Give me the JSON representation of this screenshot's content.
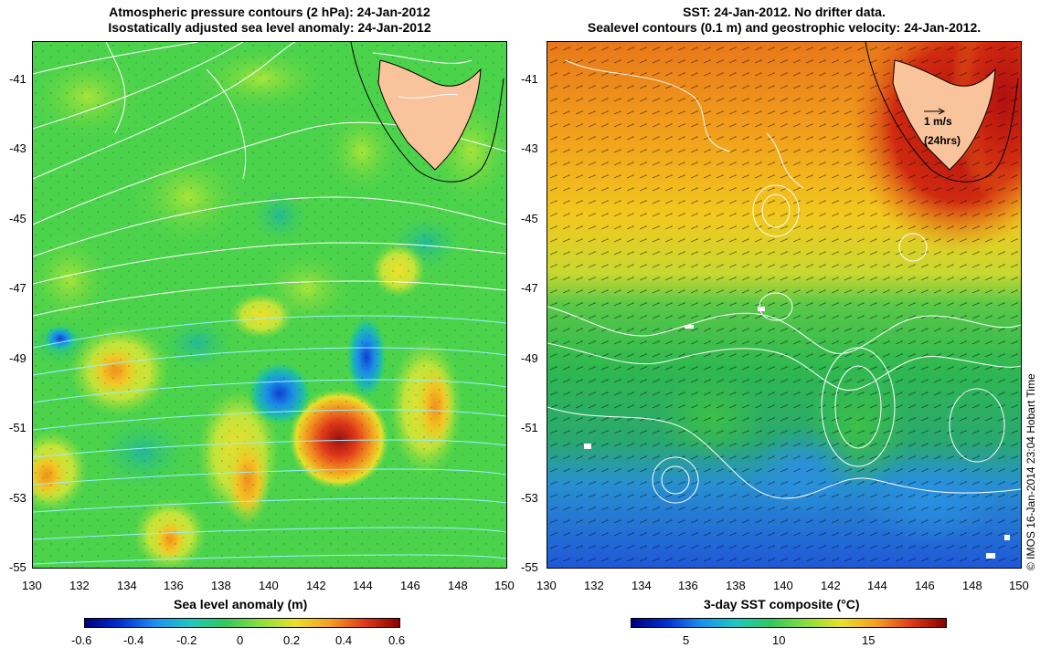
{
  "left_panel": {
    "title_line1": "Atmospheric pressure contours (2 hPa): 24-Jan-2012",
    "title_line2": "Isostatically adjusted sea level anomaly: 24-Jan-2012",
    "xlabel": "Sea level anomaly (m)",
    "x_ticks": [
      "130",
      "132",
      "134",
      "136",
      "138",
      "140",
      "142",
      "144",
      "146",
      "148",
      "150"
    ],
    "y_ticks": [
      "-41",
      "-43",
      "-45",
      "-47",
      "-49",
      "-51",
      "-53",
      "-55"
    ],
    "colorbar_ticks": [
      "-0.6",
      "-0.4",
      "-0.2",
      "0",
      "0.2",
      "0.4",
      "0.6"
    ]
  },
  "right_panel": {
    "title_line1": "SST: 24-Jan-2012. No drifter data.",
    "title_line2": "Sealevel contours (0.1 m) and geostrophic velocity: 24-Jan-2012.",
    "xlabel": "3-day SST composite (°C)",
    "x_ticks": [
      "130",
      "132",
      "134",
      "136",
      "138",
      "140",
      "142",
      "144",
      "146",
      "148",
      "150"
    ],
    "y_ticks": [
      "-41",
      "-43",
      "-45",
      "-47",
      "-49",
      "-51",
      "-53",
      "-55"
    ],
    "colorbar_ticks": [
      "5",
      "10",
      "15"
    ],
    "scale_label_line1": "1 m/s",
    "scale_label_line2": "(24hrs)"
  },
  "credit": "© IMOS 16-Jan-2014 23:04 Hobart Time",
  "colors": {
    "land": "#f9c39b",
    "sla_background": "#4cd34c",
    "sst_warm": "#f2a11c",
    "sst_mid": "#2fbf50",
    "sst_cold": "#2f8ae0"
  }
}
